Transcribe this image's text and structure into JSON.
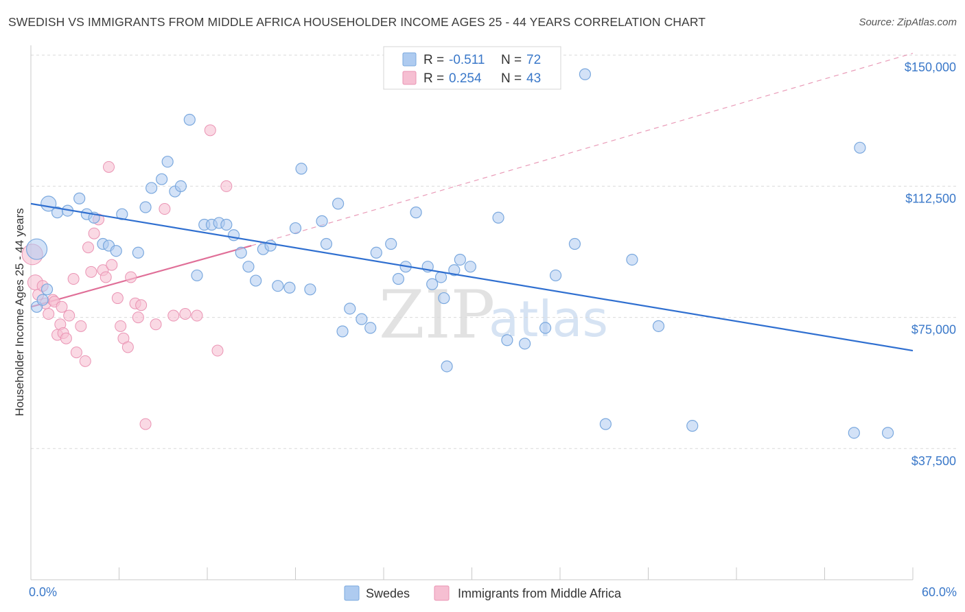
{
  "title": "SWEDISH VS IMMIGRANTS FROM MIDDLE AFRICA HOUSEHOLDER INCOME AGES 25 - 44 YEARS CORRELATION CHART",
  "source": "Source: ZipAtlas.com",
  "watermark": {
    "zip": "ZIP",
    "atlas": "atlas"
  },
  "colors": {
    "blue_fill": "#aecbf0",
    "blue_stroke": "#7aa8de",
    "blue_line": "#2f6fd0",
    "pink_fill": "#f6bfd2",
    "pink_stroke": "#ea93b3",
    "pink_line": "#e06f98",
    "axis_text": "#3a78c9",
    "grid": "#d9d9d9"
  },
  "legend": {
    "r_label": "R =",
    "n_label": "N =",
    "rows": [
      {
        "series": "Swedes",
        "r": "-0.511",
        "n": "72"
      },
      {
        "series": "Immigrants from Middle Africa",
        "r": "0.254",
        "n": "43"
      }
    ]
  },
  "chart_data": {
    "type": "scatter",
    "title": "SWEDISH VS IMMIGRANTS FROM MIDDLE AFRICA HOUSEHOLDER INCOME AGES 25 - 44 YEARS CORRELATION CHART",
    "xlabel": "",
    "ylabel": "Householder Income Ages 25 - 44 years",
    "xlim": [
      0,
      60
    ],
    "ylim": [
      0,
      152000
    ],
    "x_tick_labels": [
      "0.0%",
      "60.0%"
    ],
    "y_ticks": [
      37500,
      75000,
      112500,
      150000
    ],
    "y_tick_labels": [
      "$37,500",
      "$75,000",
      "$112,500",
      "$150,000"
    ],
    "series": [
      {
        "name": "Swedes",
        "trend": {
          "x0": 0,
          "y0": 107500,
          "x1": 60,
          "y1": 65500
        },
        "points": [
          [
            0.4,
            94500,
            3
          ],
          [
            1.2,
            107500,
            2
          ],
          [
            1.8,
            105000,
            1
          ],
          [
            2.5,
            105500,
            1
          ],
          [
            3.3,
            109000,
            1
          ],
          [
            3.8,
            104500,
            1
          ],
          [
            4.3,
            103500,
            1
          ],
          [
            4.9,
            96000,
            1
          ],
          [
            5.3,
            95500,
            1
          ],
          [
            5.8,
            94000,
            1
          ],
          [
            6.2,
            104500,
            1
          ],
          [
            7.3,
            93500,
            1
          ],
          [
            7.8,
            106500,
            1
          ],
          [
            8.2,
            112000,
            1
          ],
          [
            8.9,
            114500,
            1
          ],
          [
            9.3,
            119500,
            1
          ],
          [
            9.8,
            111000,
            1
          ],
          [
            10.2,
            112500,
            1
          ],
          [
            10.8,
            131500,
            1
          ],
          [
            11.3,
            87000,
            1
          ],
          [
            11.8,
            101500,
            1
          ],
          [
            12.3,
            101500,
            1
          ],
          [
            12.8,
            102000,
            1
          ],
          [
            13.3,
            101500,
            1
          ],
          [
            13.8,
            98500,
            1
          ],
          [
            14.3,
            93500,
            1
          ],
          [
            14.8,
            89500,
            1
          ],
          [
            15.3,
            85500,
            1
          ],
          [
            15.8,
            94500,
            1
          ],
          [
            16.3,
            95500,
            1
          ],
          [
            16.8,
            84000,
            1
          ],
          [
            17.6,
            83500,
            1
          ],
          [
            18.0,
            100500,
            1
          ],
          [
            18.4,
            117500,
            1
          ],
          [
            19.0,
            83000,
            1
          ],
          [
            19.8,
            102500,
            1
          ],
          [
            20.1,
            96000,
            1
          ],
          [
            20.9,
            107500,
            1
          ],
          [
            21.2,
            71000,
            1
          ],
          [
            21.7,
            77500,
            1
          ],
          [
            22.5,
            74500,
            1
          ],
          [
            23.1,
            72000,
            1
          ],
          [
            23.5,
            93500,
            1
          ],
          [
            24.5,
            96000,
            1
          ],
          [
            25.0,
            86000,
            1
          ],
          [
            25.5,
            89500,
            1
          ],
          [
            26.2,
            105000,
            1
          ],
          [
            27.0,
            89500,
            1
          ],
          [
            27.3,
            84500,
            1
          ],
          [
            27.9,
            86500,
            1
          ],
          [
            28.1,
            80500,
            1
          ],
          [
            28.3,
            61000,
            1
          ],
          [
            28.8,
            88500,
            1
          ],
          [
            29.2,
            91500,
            1
          ],
          [
            29.9,
            89500,
            1
          ],
          [
            31.8,
            103500,
            1
          ],
          [
            32.4,
            68500,
            1
          ],
          [
            33.6,
            67500,
            1
          ],
          [
            35.0,
            72000,
            1
          ],
          [
            35.7,
            87000,
            1
          ],
          [
            37.0,
            96000,
            1
          ],
          [
            37.7,
            144500,
            1
          ],
          [
            39.1,
            44500,
            1
          ],
          [
            40.9,
            91500,
            1
          ],
          [
            42.7,
            72500,
            1
          ],
          [
            45.0,
            44000,
            1
          ],
          [
            56.0,
            42000,
            1
          ],
          [
            56.4,
            123500,
            1
          ],
          [
            58.3,
            42000,
            1
          ],
          [
            0.4,
            78000,
            1
          ],
          [
            0.8,
            80000,
            1
          ],
          [
            1.1,
            83000,
            1
          ]
        ]
      },
      {
        "name": "Immigrants from Middle Africa",
        "trend": {
          "x0": 0,
          "y0": 78000,
          "x1": 15,
          "y1": 95500,
          "x2": 60,
          "y2": 150500
        },
        "points": [
          [
            0.1,
            93000,
            3
          ],
          [
            0.3,
            85000,
            2
          ],
          [
            0.5,
            81500,
            1
          ],
          [
            0.8,
            84000,
            1
          ],
          [
            1.0,
            79000,
            1
          ],
          [
            1.2,
            76000,
            1
          ],
          [
            1.5,
            80000,
            1
          ],
          [
            1.8,
            70000,
            1
          ],
          [
            2.0,
            73000,
            1
          ],
          [
            2.2,
            70500,
            1
          ],
          [
            2.4,
            69000,
            1
          ],
          [
            2.6,
            75500,
            1
          ],
          [
            2.9,
            86000,
            1
          ],
          [
            3.1,
            65000,
            1
          ],
          [
            3.4,
            72500,
            1
          ],
          [
            3.7,
            62500,
            1
          ],
          [
            3.9,
            95000,
            1
          ],
          [
            4.1,
            88000,
            1
          ],
          [
            4.3,
            99000,
            1
          ],
          [
            4.6,
            103000,
            1
          ],
          [
            4.9,
            88500,
            1
          ],
          [
            5.1,
            86500,
            1
          ],
          [
            5.3,
            118000,
            1
          ],
          [
            5.5,
            90000,
            1
          ],
          [
            5.9,
            80500,
            1
          ],
          [
            6.1,
            72500,
            1
          ],
          [
            6.3,
            69000,
            1
          ],
          [
            6.6,
            66500,
            1
          ],
          [
            6.8,
            86500,
            1
          ],
          [
            7.1,
            79000,
            1
          ],
          [
            7.3,
            75000,
            1
          ],
          [
            7.5,
            78500,
            1
          ],
          [
            7.8,
            44500,
            1
          ],
          [
            8.5,
            73000,
            1
          ],
          [
            9.1,
            106000,
            1
          ],
          [
            9.7,
            75500,
            1
          ],
          [
            10.5,
            76000,
            1
          ],
          [
            11.3,
            75500,
            1
          ],
          [
            12.2,
            128500,
            1
          ],
          [
            12.7,
            65500,
            1
          ],
          [
            13.3,
            112500,
            1
          ],
          [
            1.6,
            79500,
            1
          ],
          [
            2.1,
            78000,
            1
          ]
        ]
      }
    ]
  }
}
